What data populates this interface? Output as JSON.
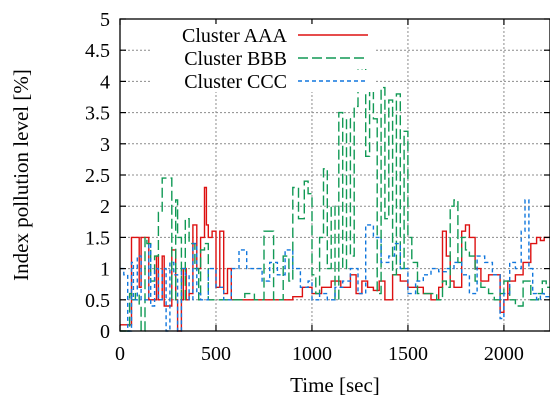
{
  "chart_data": {
    "type": "line",
    "xlabel": "Time [sec]",
    "ylabel": "Index pollution level [%]",
    "xlim": [
      0,
      2240
    ],
    "ylim": [
      0,
      5
    ],
    "x_ticks": [
      "0",
      "500",
      "1000",
      "1500",
      "2000"
    ],
    "y_ticks": [
      "0",
      "0.5",
      "1",
      "1.5",
      "2",
      "2.5",
      "3",
      "3.5",
      "4",
      "4.5",
      "5"
    ],
    "grid": true,
    "legend_position": "top-right",
    "series": [
      {
        "name": "Cluster AAA",
        "color": "#dd1111",
        "dash": "solid",
        "x": [
          0,
          40,
          60,
          70,
          100,
          110,
          140,
          150,
          170,
          190,
          200,
          220,
          230,
          260,
          270,
          290,
          300,
          320,
          330,
          345,
          360,
          380,
          400,
          420,
          440,
          450,
          460,
          480,
          500,
          520,
          540,
          560,
          580,
          600,
          640,
          700,
          760,
          800,
          860,
          900,
          950,
          1000,
          1050,
          1100,
          1150,
          1200,
          1230,
          1260,
          1290,
          1320,
          1350,
          1380,
          1420,
          1460,
          1500,
          1540,
          1580,
          1620,
          1660,
          1680,
          1700,
          1720,
          1740,
          1780,
          1800,
          1820,
          1850,
          1880,
          1920,
          1960,
          1980,
          2000,
          2020,
          2060,
          2100,
          2140,
          2170,
          2190,
          2210,
          2240
        ],
        "y": [
          0.1,
          0.1,
          1.5,
          1.5,
          0.7,
          1.5,
          1.5,
          0.5,
          0.5,
          1.2,
          0.5,
          1.2,
          0.4,
          0.4,
          1.3,
          0.5,
          0.0,
          0.5,
          1.0,
          0.5,
          0.6,
          1.7,
          1.0,
          1.5,
          2.3,
          1.7,
          1.5,
          1.6,
          0.7,
          1.6,
          0.6,
          1.0,
          0.5,
          0.5,
          0.5,
          0.5,
          0.5,
          0.5,
          0.5,
          0.55,
          0.7,
          0.6,
          0.7,
          0.8,
          0.7,
          0.9,
          0.6,
          0.8,
          0.7,
          0.65,
          0.8,
          0.5,
          0.9,
          0.8,
          0.7,
          0.7,
          0.6,
          0.5,
          0.7,
          1.6,
          1.2,
          0.8,
          0.7,
          1.6,
          1.7,
          1.5,
          1.0,
          0.8,
          0.9,
          0.9,
          0.3,
          0.5,
          0.8,
          0.9,
          1.1,
          1.4,
          1.5,
          1.45,
          1.5,
          1.5
        ]
      },
      {
        "name": "Cluster BBB",
        "color": "#119955",
        "dash": "10 4",
        "x": [
          0,
          30,
          50,
          60,
          80,
          100,
          110,
          130,
          140,
          160,
          180,
          200,
          220,
          240,
          270,
          290,
          300,
          320,
          340,
          360,
          390,
          410,
          420,
          440,
          460,
          500,
          550,
          600,
          650,
          700,
          750,
          800,
          850,
          880,
          900,
          930,
          960,
          980,
          1000,
          1020,
          1040,
          1060,
          1080,
          1100,
          1120,
          1140,
          1160,
          1180,
          1200,
          1220,
          1240,
          1260,
          1280,
          1300,
          1320,
          1340,
          1360,
          1380,
          1400,
          1420,
          1440,
          1460,
          1480,
          1500,
          1520,
          1550,
          1600,
          1650,
          1680,
          1700,
          1720,
          1740,
          1760,
          1780,
          1800,
          1820,
          1850,
          1880,
          1920,
          1950,
          1980,
          2000,
          2030,
          2060,
          2100,
          2140,
          2180,
          2200,
          2220,
          2240
        ],
        "y": [
          0.0,
          0.0,
          0.6,
          0.5,
          0.6,
          0.4,
          0.0,
          1.5,
          1.4,
          0.8,
          1.2,
          1.9,
          2.45,
          2.45,
          0.5,
          2.1,
          1.5,
          0.5,
          1.8,
          1.4,
          1.0,
          0.5,
          1.3,
          1.4,
          0.5,
          0.5,
          0.5,
          0.5,
          0.6,
          0.5,
          1.6,
          0.5,
          1.2,
          0.8,
          2.3,
          1.8,
          2.4,
          2.2,
          0.9,
          0.6,
          1.5,
          2.6,
          1.0,
          2.0,
          0.5,
          3.5,
          1.0,
          3.4,
          1.2,
          3.6,
          4.2,
          4.3,
          2.8,
          3.9,
          3.4,
          0.6,
          3.9,
          1.8,
          3.7,
          0.9,
          3.8,
          1.0,
          3.2,
          1.5,
          1.1,
          0.6,
          0.6,
          0.5,
          0.8,
          0.7,
          2.0,
          2.1,
          1.1,
          1.5,
          1.3,
          1.2,
          0.8,
          0.7,
          0.6,
          0.5,
          0.6,
          0.8,
          0.5,
          0.4,
          0.8,
          0.5,
          0.6,
          0.8,
          0.7,
          0.7
        ]
      },
      {
        "name": "Cluster CCC",
        "color": "#1177dd",
        "dash": "4 3",
        "x": [
          0,
          20,
          40,
          60,
          70,
          90,
          110,
          130,
          150,
          160,
          180,
          200,
          220,
          240,
          260,
          280,
          300,
          320,
          340,
          360,
          380,
          400,
          420,
          460,
          500,
          540,
          580,
          620,
          660,
          700,
          740,
          780,
          820,
          860,
          900,
          940,
          980,
          1000,
          1040,
          1080,
          1120,
          1160,
          1200,
          1240,
          1280,
          1320,
          1360,
          1400,
          1430,
          1460,
          1500,
          1540,
          1580,
          1620,
          1660,
          1700,
          1740,
          1780,
          1820,
          1860,
          1900,
          1940,
          1980,
          2000,
          2030,
          2060,
          2090,
          2110,
          2130,
          2150,
          2170,
          2190,
          2210,
          2240
        ],
        "y": [
          1.0,
          0.9,
          0.0,
          1.1,
          0.5,
          1.2,
          0.5,
          0.5,
          1.4,
          0.4,
          1.0,
          0.5,
          1.0,
          0.0,
          1.1,
          0.9,
          0.0,
          1.0,
          0.9,
          0.5,
          1.4,
          0.6,
          0.5,
          1.0,
          0.7,
          0.5,
          1.0,
          1.3,
          1.0,
          1.0,
          0.8,
          1.1,
          0.9,
          1.3,
          1.0,
          0.7,
          0.8,
          0.5,
          0.6,
          0.5,
          0.7,
          0.8,
          1.0,
          0.6,
          1.7,
          1.5,
          1.1,
          1.2,
          1.4,
          1.0,
          0.6,
          0.8,
          0.9,
          1.0,
          0.95,
          1.0,
          1.1,
          0.9,
          0.6,
          1.2,
          1.1,
          0.9,
          0.2,
          0.6,
          1.1,
          1.0,
          1.6,
          2.1,
          1.0,
          0.6,
          0.5,
          0.6,
          0.55,
          0.6
        ]
      }
    ]
  }
}
